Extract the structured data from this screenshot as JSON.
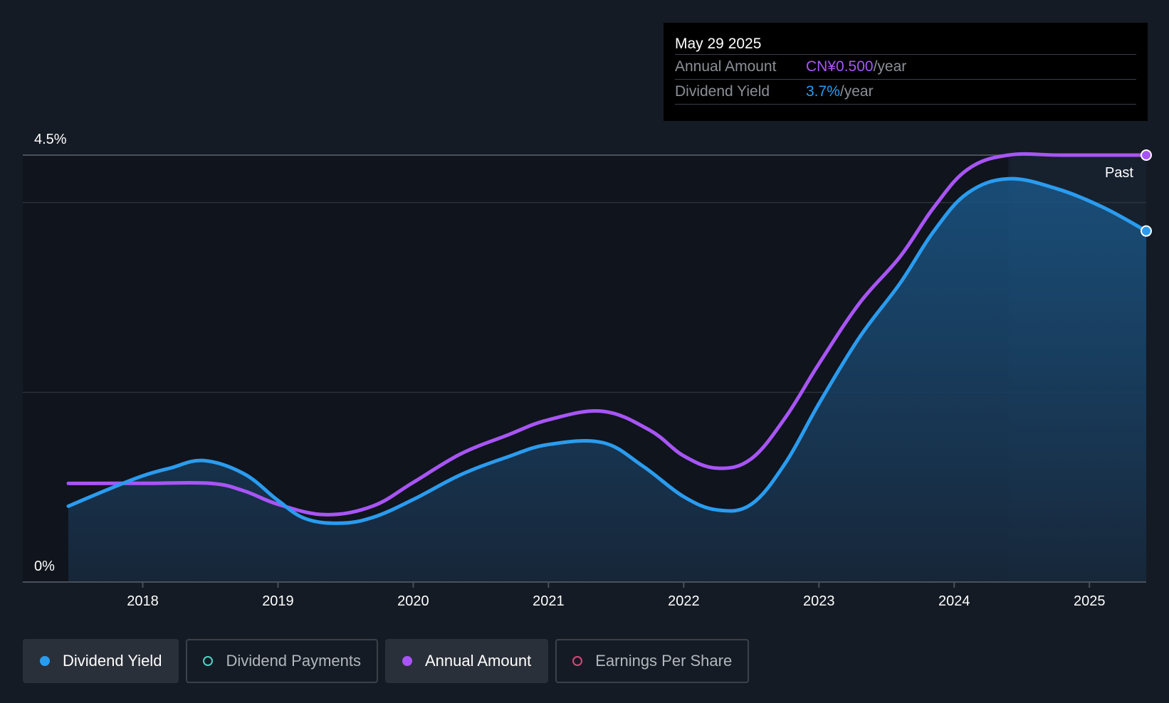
{
  "tooltip": {
    "date": "May 29 2025",
    "rows": [
      {
        "label": "Annual Amount",
        "value": "CN¥0.500",
        "unit": "/year"
      },
      {
        "label": "Dividend Yield",
        "value": "3.7%",
        "unit": "/year"
      }
    ]
  },
  "legend": [
    {
      "label": "Dividend Yield",
      "color": "#2a9cf0",
      "active": true,
      "filled": true
    },
    {
      "label": "Dividend Payments",
      "color": "#4fd1c5",
      "active": false,
      "filled": false
    },
    {
      "label": "Annual Amount",
      "color": "#a855f7",
      "active": true,
      "filled": true
    },
    {
      "label": "Earnings Per Share",
      "color": "#d9467a",
      "active": false,
      "filled": false
    }
  ],
  "chart_data": {
    "type": "line",
    "title": "",
    "xlabel": "",
    "ylabel": "",
    "ylim": [
      0,
      4.5
    ],
    "xlim": [
      2017.45,
      2025.42
    ],
    "y_tick_labels": [
      {
        "value": 4.5,
        "label": "4.5%"
      },
      {
        "value": 0,
        "label": "0%"
      }
    ],
    "gridlines": [
      4.5,
      4.0,
      2.0,
      0
    ],
    "x_ticks": [
      {
        "value": 2018,
        "label": "2018"
      },
      {
        "value": 2019,
        "label": "2019"
      },
      {
        "value": 2020,
        "label": "2020"
      },
      {
        "value": 2021,
        "label": "2021"
      },
      {
        "value": 2022,
        "label": "2022"
      },
      {
        "value": 2023,
        "label": "2023"
      },
      {
        "value": 2024,
        "label": "2024"
      },
      {
        "value": 2025,
        "label": "2025"
      }
    ],
    "past_region": {
      "start": 2024.4,
      "label": "Past"
    },
    "series": [
      {
        "name": "Annual Amount",
        "color": "#a855f7",
        "unit": "CN¥ (scaled to yield axis)",
        "points": [
          [
            2017.45,
            1.04
          ],
          [
            2018.0,
            1.04
          ],
          [
            2018.5,
            1.04
          ],
          [
            2018.75,
            0.96
          ],
          [
            2019.0,
            0.82
          ],
          [
            2019.35,
            0.71
          ],
          [
            2019.7,
            0.8
          ],
          [
            2020.0,
            1.05
          ],
          [
            2020.35,
            1.35
          ],
          [
            2020.7,
            1.55
          ],
          [
            2021.0,
            1.71
          ],
          [
            2021.4,
            1.8
          ],
          [
            2021.75,
            1.6
          ],
          [
            2022.0,
            1.33
          ],
          [
            2022.25,
            1.2
          ],
          [
            2022.5,
            1.3
          ],
          [
            2022.75,
            1.73
          ],
          [
            2023.0,
            2.3
          ],
          [
            2023.3,
            2.94
          ],
          [
            2023.6,
            3.43
          ],
          [
            2023.85,
            3.95
          ],
          [
            2024.1,
            4.35
          ],
          [
            2024.4,
            4.5
          ],
          [
            2024.8,
            4.5
          ],
          [
            2025.42,
            4.5
          ]
        ]
      },
      {
        "name": "Dividend Yield",
        "color": "#2a9cf0",
        "unit": "%",
        "points": [
          [
            2017.45,
            0.8
          ],
          [
            2017.75,
            0.98
          ],
          [
            2018.0,
            1.12
          ],
          [
            2018.2,
            1.2
          ],
          [
            2018.45,
            1.28
          ],
          [
            2018.75,
            1.14
          ],
          [
            2019.0,
            0.86
          ],
          [
            2019.2,
            0.67
          ],
          [
            2019.45,
            0.62
          ],
          [
            2019.7,
            0.68
          ],
          [
            2020.0,
            0.87
          ],
          [
            2020.35,
            1.13
          ],
          [
            2020.7,
            1.32
          ],
          [
            2021.0,
            1.45
          ],
          [
            2021.4,
            1.47
          ],
          [
            2021.7,
            1.22
          ],
          [
            2022.0,
            0.9
          ],
          [
            2022.25,
            0.76
          ],
          [
            2022.5,
            0.82
          ],
          [
            2022.75,
            1.25
          ],
          [
            2023.0,
            1.88
          ],
          [
            2023.3,
            2.58
          ],
          [
            2023.6,
            3.15
          ],
          [
            2023.85,
            3.7
          ],
          [
            2024.1,
            4.1
          ],
          [
            2024.4,
            4.25
          ],
          [
            2024.75,
            4.15
          ],
          [
            2025.1,
            3.95
          ],
          [
            2025.42,
            3.7
          ]
        ]
      }
    ]
  }
}
